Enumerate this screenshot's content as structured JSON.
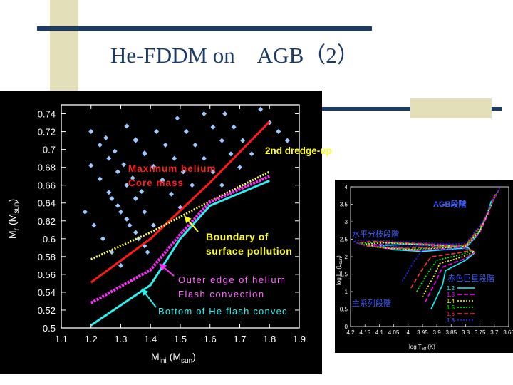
{
  "slide": {
    "title": "He-FDDM on　AGB（2）",
    "colors": {
      "title": "#1b3b68",
      "navy_bar": "#1b3b68",
      "tan_block": "#e2dfb9",
      "panel_bg": "#000000"
    }
  },
  "chart_data": [
    {
      "type": "line",
      "xlabel": "M",
      "xlabel_sub": "ini",
      "xlabel_unit": "(M",
      "xlabel_unit_sub": "sun",
      "ylabel": "M",
      "ylabel_sub": "r",
      "ylabel_unit": "(M",
      "ylabel_unit_sub": "sun",
      "xlim": [
        1.1,
        1.9
      ],
      "ylim": [
        0.5,
        0.75
      ],
      "xticks": [
        "1.1",
        "1.2",
        "1.3",
        "1.4",
        "1.5",
        "1.6",
        "1.7",
        "1.8",
        "1.9"
      ],
      "yticks": [
        "0.5",
        "0.52",
        "0.54",
        "0.56",
        "0.58",
        "0.6",
        "0.62",
        "0.64",
        "0.66",
        "0.68",
        "0.7",
        "0.72",
        "0.74"
      ],
      "series": [
        {
          "key": "max_core",
          "color": "#ff1a1a",
          "style": "solid",
          "x": [
            1.2,
            1.4,
            1.6,
            1.8
          ],
          "y": [
            0.551,
            0.6,
            0.663,
            0.731
          ]
        },
        {
          "key": "boundary",
          "color": "#ffff55",
          "style": "dotted",
          "x": [
            1.2,
            1.4,
            1.6,
            1.8
          ],
          "y": [
            0.577,
            0.607,
            0.642,
            0.675
          ]
        },
        {
          "key": "outer_edge",
          "color": "#ff2bff",
          "style": "dashed",
          "x": [
            1.2,
            1.4,
            1.5,
            1.6,
            1.8
          ],
          "y": [
            0.528,
            0.565,
            0.605,
            0.641,
            0.67
          ]
        },
        {
          "key": "bottom",
          "color": "#2ef0ee",
          "style": "solid",
          "x": [
            1.2,
            1.4,
            1.5,
            1.6,
            1.8
          ],
          "y": [
            0.503,
            0.548,
            0.6,
            0.637,
            0.665
          ]
        }
      ],
      "diamond_rows": [
        {
          "x": [
            1.2,
            1.23,
            1.26,
            1.29,
            1.32,
            1.35,
            1.38,
            1.41
          ],
          "y": [
            0.72,
            0.705,
            0.69,
            0.675,
            0.66,
            0.645,
            0.63,
            0.615
          ]
        },
        {
          "x": [
            1.2,
            1.23,
            1.26,
            1.29,
            1.32,
            1.35,
            1.38
          ],
          "y": [
            0.682,
            0.667,
            0.652,
            0.637,
            0.622,
            0.607,
            0.592
          ]
        },
        {
          "x": [
            1.18,
            1.21,
            1.24,
            1.27,
            1.3
          ],
          "y": [
            0.63,
            0.615,
            0.6,
            0.585,
            0.57
          ]
        },
        {
          "x": [
            1.25,
            1.28,
            1.31,
            1.34,
            1.37
          ],
          "y": [
            0.713,
            0.698,
            0.683,
            0.668,
            0.653
          ]
        },
        {
          "x": [
            1.27,
            1.3,
            1.33,
            1.36,
            1.39
          ],
          "y": [
            0.645,
            0.63,
            0.615,
            0.6,
            0.585
          ]
        },
        {
          "x": [
            1.32,
            1.35,
            1.38,
            1.41,
            1.44
          ],
          "y": [
            0.726,
            0.711,
            0.696,
            0.681,
            0.666
          ]
        },
        {
          "x": [
            1.35,
            1.38,
            1.41,
            1.44,
            1.47,
            1.5
          ],
          "y": [
            0.71,
            0.695,
            0.68,
            0.665,
            0.65,
            0.635
          ]
        },
        {
          "x": [
            1.42,
            1.45,
            1.48,
            1.51,
            1.54
          ],
          "y": [
            0.72,
            0.705,
            0.69,
            0.675,
            0.66
          ]
        },
        {
          "x": [
            1.49,
            1.52,
            1.55,
            1.58,
            1.61,
            1.64
          ],
          "y": [
            0.735,
            0.72,
            0.705,
            0.69,
            0.675,
            0.66
          ]
        },
        {
          "x": [
            1.58,
            1.61,
            1.64,
            1.67,
            1.7
          ],
          "y": [
            0.74,
            0.725,
            0.71,
            0.695,
            0.68
          ]
        },
        {
          "x": [
            1.65,
            1.68,
            1.71,
            1.74
          ],
          "y": [
            0.74,
            0.725,
            0.71,
            0.695
          ]
        },
        {
          "x": [
            1.77,
            1.8,
            1.83,
            1.86
          ],
          "y": [
            0.745,
            0.73,
            0.72,
            0.71
          ]
        }
      ],
      "annotations": {
        "second_dredge_up": "2nd dredge-up",
        "max_core_line1": "Maximum helium",
        "max_core_line2": "Core mass",
        "boundary_line1": "Boundary of",
        "boundary_line2": "surface pollution",
        "outer_line1": "Outer edge of helium",
        "outer_line2": "Flash convection",
        "bottom": "Bottom of He flash convec"
      }
    },
    {
      "type": "line",
      "xlabel": "log T",
      "xlabel_sub": "eff",
      "xlabel_unit": "(K)",
      "ylabel": "log L",
      "ylabel_sub": "s",
      "ylabel_unit": "(L",
      "ylabel_unit_sub": "sun",
      "xlim": [
        4.2,
        3.65
      ],
      "ylim": [
        0,
        4
      ],
      "xticks": [
        "4.2",
        "4.15",
        "4.1",
        "4.05",
        "4",
        "3.95",
        "3.9",
        "3.85",
        "3.8",
        "3.75",
        "3.7",
        "3.65"
      ],
      "yticks": [
        "0",
        "0.5",
        "1",
        "1.5",
        "2",
        "2.5",
        "3",
        "3.5",
        "4"
      ],
      "labels": {
        "agb": "AGB段階",
        "hb": "水平分枝段階",
        "rgb": "赤色巨星段階",
        "ms": "主系列段階"
      },
      "series": [
        {
          "name": "1.2",
          "color": "#00ffff",
          "style": "solid"
        },
        {
          "name": "1.3",
          "color": "#ff00ff",
          "style": "dashed"
        },
        {
          "name": "1.4",
          "color": "#ffff00",
          "style": "dotted"
        },
        {
          "name": "1.5",
          "color": "#00ff00",
          "style": "dotted"
        },
        {
          "name": "1.6",
          "color": "#ff3030",
          "style": "dashed"
        },
        {
          "name": "1.8",
          "color": "#2020ff",
          "style": "dotted"
        }
      ]
    }
  ]
}
